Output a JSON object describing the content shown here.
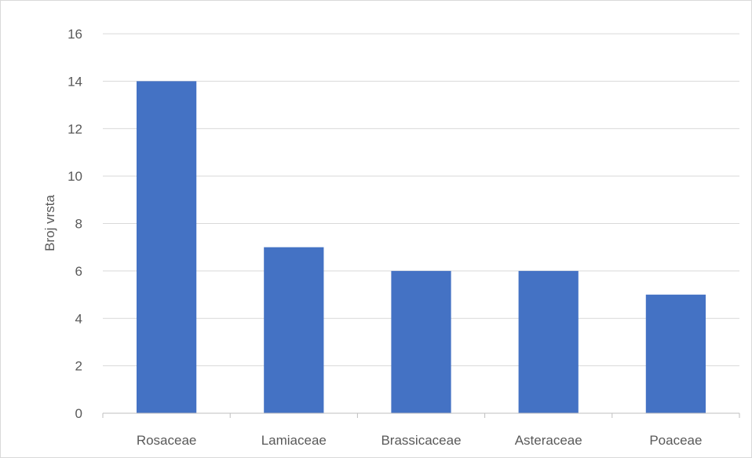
{
  "chart_data": {
    "type": "bar",
    "title": "",
    "xlabel": "",
    "ylabel": "Broj vrsta",
    "categories": [
      "Rosaceae",
      "Lamiaceae",
      "Brassicaceae",
      "Asteraceae",
      "Poaceae"
    ],
    "values": [
      14,
      7,
      6,
      6,
      5
    ],
    "ylim": [
      0,
      16
    ],
    "yticks": [
      "0",
      "2",
      "4",
      "6",
      "8",
      "10",
      "12",
      "14",
      "16"
    ],
    "grid": true,
    "legend": "none",
    "colors": {
      "bar": "#4472c4",
      "grid": "#d9d9d9",
      "axis": "#bfbfbf",
      "text": "#595959"
    }
  }
}
